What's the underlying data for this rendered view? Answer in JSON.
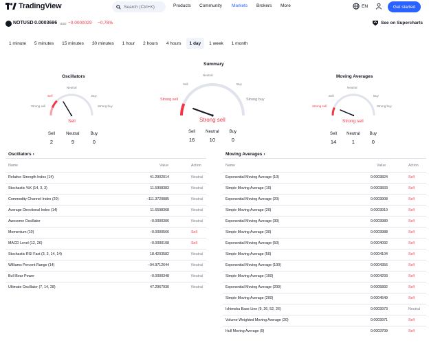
{
  "header": {
    "logo_text": "TradingView",
    "search_placeholder": "Search (Ctrl+K)",
    "nav": [
      "Products",
      "Community",
      "Markets",
      "Brokers",
      "More"
    ],
    "active_nav": "Markets",
    "language": "EN",
    "cta": "Get started"
  },
  "symbol": {
    "name": "NOTUSD",
    "price": "0.0003696",
    "currency": "USD",
    "change": "−0.0000029",
    "change_pct": "−0.78%",
    "supercharts": "See on Supercharts"
  },
  "intervals": [
    "1 minute",
    "5 minutes",
    "15 minutes",
    "30 minutes",
    "1 hour",
    "2 hours",
    "4 hours",
    "1 day",
    "1 week",
    "1 month"
  ],
  "active_interval": "1 day",
  "colors": {
    "sell": "#f23645",
    "buy": "#2962ff",
    "neutral": "#787b86"
  },
  "gauges": {
    "oscillators": {
      "title": "Oscillators",
      "labels": {
        "strong_sell": "Strong sell",
        "sell": "Sell",
        "neutral": "Neutral",
        "buy": "Buy",
        "strong_buy": "Strong buy"
      },
      "signal": "Sell",
      "counts": {
        "sell_label": "Sell",
        "neutral_label": "Neutral",
        "buy_label": "Buy",
        "sell": "2",
        "neutral": "9",
        "buy": "0"
      }
    },
    "summary": {
      "title": "Summary",
      "labels": {
        "strong_sell": "Strong sell",
        "sell": "Sell",
        "neutral": "Neutral",
        "buy": "Buy",
        "strong_buy": "Strong buy"
      },
      "signal": "Strong sell",
      "counts": {
        "sell_label": "Sell",
        "neutral_label": "Neutral",
        "buy_label": "Buy",
        "sell": "16",
        "neutral": "10",
        "buy": "0"
      }
    },
    "moving_averages": {
      "title": "Moving Averages",
      "labels": {
        "strong_sell": "Strong sell",
        "sell": "Sell",
        "neutral": "Neutral",
        "buy": "Buy",
        "strong_buy": "Strong buy"
      },
      "signal": "Strong sell",
      "counts": {
        "sell_label": "Sell",
        "neutral_label": "Neutral",
        "buy_label": "Buy",
        "sell": "14",
        "neutral": "1",
        "buy": "0"
      }
    }
  },
  "oscillators_table": {
    "title": "Oscillators",
    "headers": {
      "name": "Name",
      "value": "Value",
      "action": "Action"
    },
    "rows": [
      {
        "name": "Relative Strength Index (14)",
        "value": "41.2902014",
        "action": "Neutral"
      },
      {
        "name": "Stochastic %K (14, 3, 3)",
        "value": "11.5908383",
        "action": "Neutral"
      },
      {
        "name": "Commodity Channel Index (20)",
        "value": "−111.3720885",
        "action": "Neutral"
      },
      {
        "name": "Average Directional Index (14)",
        "value": "11.6598368",
        "action": "Neutral"
      },
      {
        "name": "Awesome Oscillator",
        "value": "−0.0000306",
        "action": "Neutral"
      },
      {
        "name": "Momentum (10)",
        "value": "−0.0000566",
        "action": "Sell"
      },
      {
        "name": "MACD Level (12, 26)",
        "value": "−0.0000108",
        "action": "Sell"
      },
      {
        "name": "Stochastic RSI Fast (3, 3, 14, 14)",
        "value": "18.4203582",
        "action": "Neutral"
      },
      {
        "name": "Williams Percent Range (14)",
        "value": "−94.9712644",
        "action": "Neutral"
      },
      {
        "name": "Bull Bear Power",
        "value": "−0.0000348",
        "action": "Neutral"
      },
      {
        "name": "Ultimate Oscillator (7, 14, 28)",
        "value": "47.2967930",
        "action": "Neutral"
      }
    ]
  },
  "ma_table": {
    "title": "Moving Averages",
    "headers": {
      "name": "Name",
      "value": "Value",
      "action": "Action"
    },
    "rows": [
      {
        "name": "Exponential Moving Average (10)",
        "value": "0.0003824",
        "action": "Sell"
      },
      {
        "name": "Simple Moving Average (10)",
        "value": "0.0003833",
        "action": "Sell"
      },
      {
        "name": "Exponential Moving Average (20)",
        "value": "0.0003908",
        "action": "Sell"
      },
      {
        "name": "Simple Moving Average (20)",
        "value": "0.0003910",
        "action": "Sell"
      },
      {
        "name": "Exponential Moving Average (30)",
        "value": "0.0003980",
        "action": "Sell"
      },
      {
        "name": "Simple Moving Average (30)",
        "value": "0.0003988",
        "action": "Sell"
      },
      {
        "name": "Exponential Moving Average (50)",
        "value": "0.0004092",
        "action": "Sell"
      },
      {
        "name": "Simple Moving Average (50)",
        "value": "0.0004104",
        "action": "Sell"
      },
      {
        "name": "Exponential Moving Average (100)",
        "value": "0.0004356",
        "action": "Sell"
      },
      {
        "name": "Simple Moving Average (100)",
        "value": "0.0004293",
        "action": "Sell"
      },
      {
        "name": "Exponential Moving Average (200)",
        "value": "0.0005892",
        "action": "Sell"
      },
      {
        "name": "Simple Moving Average (200)",
        "value": "0.0004549",
        "action": "Sell"
      },
      {
        "name": "Ichimoku Base Line (9, 26, 52, 26)",
        "value": "0.0003973",
        "action": "Neutral"
      },
      {
        "name": "Volume Weighted Moving Average (20)",
        "value": "0.0003971",
        "action": "Sell"
      },
      {
        "name": "Hull Moving Average (9)",
        "value": "0.0003709",
        "action": "Sell"
      }
    ]
  }
}
